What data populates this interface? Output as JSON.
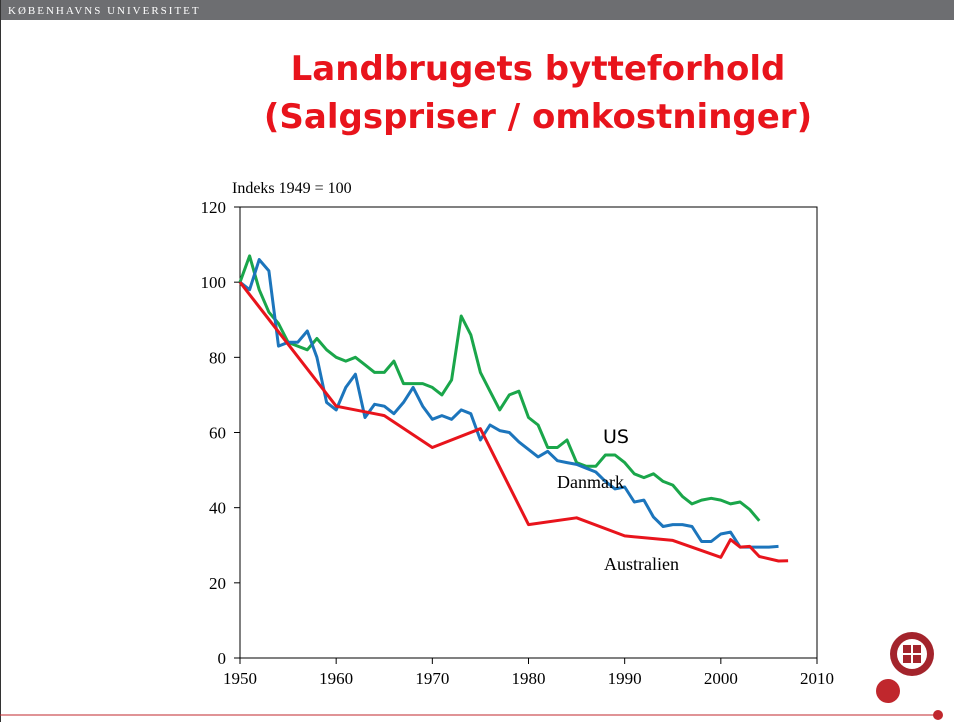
{
  "header": "KØBENHAVNS UNIVERSITET",
  "chart_data": {
    "type": "line",
    "title": "Landbrugets bytteforhold",
    "subtitle": "(Salgspriser / omkostninger)",
    "y_label": "Indeks 1949 = 100",
    "xlim": [
      1950,
      2010
    ],
    "xticks": [
      1950,
      1960,
      1970,
      1980,
      1990,
      2000,
      2010
    ],
    "ylim": [
      0,
      120
    ],
    "yticks": [
      0,
      20,
      40,
      60,
      80,
      100,
      120
    ],
    "series": [
      {
        "name": "US",
        "color": "#1aa64a",
        "x": [
          1950,
          1951,
          1952,
          1953,
          1954,
          1955,
          1956,
          1957,
          1958,
          1959,
          1960,
          1961,
          1962,
          1963,
          1964,
          1965,
          1966,
          1967,
          1968,
          1969,
          1970,
          1971,
          1972,
          1973,
          1974,
          1975,
          1976,
          1977,
          1978,
          1979,
          1980,
          1981,
          1982,
          1983,
          1984,
          1985,
          1986,
          1987,
          1988,
          1989,
          1990,
          1991,
          1992,
          1993,
          1994,
          1995,
          1996,
          1997,
          1998,
          1999,
          2000,
          2001,
          2002,
          2003,
          2004
        ],
        "values": [
          100,
          107,
          98,
          92,
          89,
          84,
          83,
          82,
          85,
          82,
          80,
          79,
          80,
          78,
          76,
          76,
          79,
          73,
          73,
          73,
          72,
          70,
          74,
          91,
          86,
          76,
          71,
          66,
          70,
          71,
          64,
          62,
          56,
          56,
          58,
          52,
          51,
          51,
          54,
          54,
          52,
          49,
          48,
          49,
          47,
          46,
          43,
          41,
          42,
          42.5,
          42,
          41,
          41.5,
          39.5,
          36.5
        ]
      },
      {
        "name": "Danmark",
        "color": "#1c75bc",
        "x": [
          1950,
          1951,
          1952,
          1953,
          1954,
          1955,
          1956,
          1957,
          1958,
          1959,
          1960,
          1961,
          1962,
          1963,
          1964,
          1965,
          1966,
          1967,
          1968,
          1969,
          1970,
          1971,
          1972,
          1973,
          1974,
          1975,
          1976,
          1977,
          1978,
          1979,
          1980,
          1981,
          1982,
          1983,
          1984,
          1985,
          1986,
          1987,
          1988,
          1989,
          1990,
          1991,
          1992,
          1993,
          1994,
          1995,
          1996,
          1997,
          1998,
          1999,
          2000,
          2001,
          2002,
          2003,
          2004,
          2005,
          2006
        ],
        "values": [
          100,
          98,
          106,
          103,
          83,
          84,
          84,
          87,
          80,
          68,
          66,
          72,
          75.5,
          64,
          67.5,
          67,
          65,
          68,
          72,
          67,
          63.5,
          64.5,
          63.5,
          66,
          65,
          58,
          62,
          60.5,
          60,
          57.5,
          55.5,
          53.5,
          55,
          52.5,
          52,
          51.5,
          50.5,
          49.5,
          47,
          45,
          45.5,
          41.5,
          42,
          37.5,
          35,
          35.5,
          35.5,
          35,
          31,
          31,
          33,
          33.5,
          29.5,
          29.5,
          29.5,
          29.5,
          29.7
        ]
      },
      {
        "name": "Australien",
        "color": "#e8141c",
        "x": [
          1950,
          1960,
          1965,
          1970,
          1975,
          1980,
          1985,
          1990,
          1995,
          2000,
          2001,
          2002,
          2003,
          2004,
          2006,
          2007
        ],
        "values": [
          100,
          67,
          64.5,
          56,
          61,
          35.5,
          37.3,
          32.5,
          31.3,
          26.8,
          31.5,
          29.5,
          29.7,
          27,
          25.8,
          25.9
        ]
      }
    ]
  }
}
